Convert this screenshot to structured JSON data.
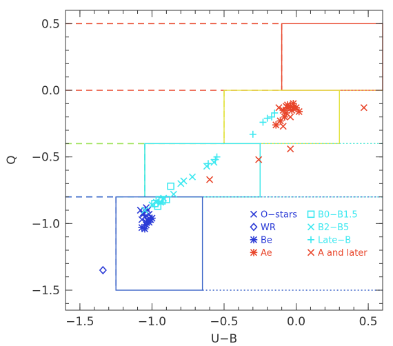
{
  "chart_data": {
    "type": "scatter",
    "xlabel": "U−B",
    "ylabel": "Q",
    "xlim": [
      -1.6,
      0.6
    ],
    "ylim": [
      -1.65,
      0.6
    ],
    "xticks": [
      -1.5,
      -1.0,
      -0.5,
      0.0,
      0.5
    ],
    "yticks": [
      -1.5,
      -1.0,
      -0.5,
      0.0,
      0.5
    ],
    "xtick_labels": [
      "−1.5",
      "−1.0",
      "−0.5",
      "0.0",
      "0.5"
    ],
    "ytick_labels": [
      "−1.5",
      "−1.0",
      "−0.5",
      "0.0",
      "0.5"
    ],
    "grid": false,
    "legend_position": "lower-right",
    "colors": {
      "dark_blue": "#2b3bd6",
      "cyan": "#3ce8f0",
      "red": "#e8452a",
      "yellow": "#e2e23a",
      "green": "#9be35a",
      "box_blue": "#3b64c8"
    },
    "legend": [
      {
        "label": "O−stars",
        "marker": "x",
        "color": "#2b3bd6"
      },
      {
        "label": "WR",
        "marker": "diamond",
        "color": "#2b3bd6"
      },
      {
        "label": "Be",
        "marker": "asterisk",
        "color": "#2b3bd6"
      },
      {
        "label": "Ae",
        "marker": "asterisk",
        "color": "#e8452a"
      },
      {
        "label": "B0−B1.5",
        "marker": "square",
        "color": "#3ce8f0"
      },
      {
        "label": "B2−B5",
        "marker": "x",
        "color": "#3ce8f0"
      },
      {
        "label": "Late−B",
        "marker": "plus",
        "color": "#3ce8f0"
      },
      {
        "label": "A and later",
        "marker": "x",
        "color": "#e8452a"
      }
    ],
    "regions": [
      {
        "q_line": 0.5,
        "x_dash_end": -0.1,
        "box": [
          -0.1,
          0.0,
          0.6,
          0.5
        ],
        "color": "#e8452a"
      },
      {
        "q_line": 0.0,
        "x_dash_end": -0.1,
        "box": null,
        "color": "#e8452a"
      },
      {
        "q_line": -0.4,
        "x_dash_end": -0.5,
        "box": [
          -0.5,
          -0.4,
          0.3,
          0.0
        ],
        "color": "#e2e23a"
      },
      {
        "q_line": -0.4,
        "x_dash_end": -1.05,
        "box": [
          -1.05,
          -0.8,
          -0.25,
          -0.4
        ],
        "color": "#9be35a"
      },
      {
        "q_line": -0.8,
        "x_dash_end": -1.05,
        "box": [
          -1.05,
          -0.8,
          -0.25,
          -0.4
        ],
        "color": "#3ce8f0"
      },
      {
        "q_line": -0.8,
        "x_dash_end": -1.25,
        "box": [
          -1.25,
          -1.5,
          -0.65,
          -0.8
        ],
        "color": "#3b64c8"
      }
    ],
    "series": [
      {
        "name": "O−stars",
        "marker": "x",
        "color": "#2b3bd6",
        "points": [
          [
            -1.08,
            -0.9
          ],
          [
            -1.06,
            -0.92
          ],
          [
            -1.05,
            -0.95
          ],
          [
            -1.03,
            -0.9
          ],
          [
            -1.02,
            -0.93
          ],
          [
            -1.07,
            -0.97
          ],
          [
            -1.04,
            -0.99
          ],
          [
            -1.02,
            -0.96
          ],
          [
            -1.06,
            -0.93
          ],
          [
            -1.04,
            -0.88
          ]
        ]
      },
      {
        "name": "WR",
        "marker": "diamond",
        "color": "#2b3bd6",
        "points": [
          [
            -1.34,
            -1.35
          ]
        ]
      },
      {
        "name": "Be",
        "marker": "asterisk",
        "color": "#2b3bd6",
        "points": [
          [
            -1.07,
            -1.03
          ],
          [
            -1.05,
            -1.04
          ],
          [
            -1.04,
            -1.01
          ],
          [
            -1.02,
            -0.99
          ],
          [
            -1.0,
            -0.96
          ],
          [
            -1.01,
            -0.97
          ],
          [
            -1.03,
            -0.98
          ]
        ]
      },
      {
        "name": "Ae",
        "marker": "asterisk",
        "color": "#e8452a",
        "points": [
          [
            -0.14,
            -0.26
          ],
          [
            -0.11,
            -0.23
          ],
          [
            -0.08,
            -0.2
          ],
          [
            -0.07,
            -0.17
          ],
          [
            -0.03,
            -0.15
          ],
          [
            -0.02,
            -0.13
          ],
          [
            -0.06,
            -0.13
          ],
          [
            -0.04,
            -0.12
          ],
          [
            0.0,
            -0.13
          ],
          [
            0.02,
            -0.16
          ],
          [
            -0.02,
            -0.1
          ],
          [
            -0.09,
            -0.15
          ],
          [
            -0.06,
            -0.11
          ]
        ]
      },
      {
        "name": "B0−B1.5",
        "marker": "square",
        "color": "#3ce8f0",
        "points": [
          [
            -0.98,
            -0.85
          ],
          [
            -0.95,
            -0.82
          ],
          [
            -0.93,
            -0.83
          ],
          [
            -0.9,
            -0.82
          ],
          [
            -0.87,
            -0.72
          ],
          [
            -0.96,
            -0.87
          ]
        ]
      },
      {
        "name": "B2−B5",
        "marker": "x",
        "color": "#3ce8f0",
        "points": [
          [
            -1.05,
            -0.9
          ],
          [
            -1.0,
            -0.86
          ],
          [
            -0.97,
            -0.84
          ],
          [
            -0.92,
            -0.81
          ],
          [
            -0.85,
            -0.78
          ],
          [
            -0.8,
            -0.7
          ],
          [
            -0.78,
            -0.68
          ],
          [
            -0.72,
            -0.65
          ],
          [
            -0.62,
            -0.57
          ],
          [
            -0.57,
            -0.54
          ],
          [
            -0.94,
            -0.84
          ]
        ]
      },
      {
        "name": "Late−B",
        "marker": "plus",
        "color": "#3ce8f0",
        "points": [
          [
            -0.61,
            -0.55
          ],
          [
            -0.56,
            -0.52
          ],
          [
            -0.55,
            -0.5
          ],
          [
            -0.3,
            -0.33
          ],
          [
            -0.23,
            -0.24
          ],
          [
            -0.2,
            -0.21
          ],
          [
            -0.17,
            -0.2
          ],
          [
            -0.15,
            -0.17
          ]
        ]
      },
      {
        "name": "A and later",
        "marker": "x",
        "color": "#e8452a",
        "points": [
          [
            -0.26,
            -0.52
          ],
          [
            -0.6,
            -0.67
          ],
          [
            -0.04,
            -0.44
          ],
          [
            -0.04,
            -0.2
          ],
          [
            -0.12,
            -0.13
          ],
          [
            -0.07,
            -0.12
          ],
          [
            0.47,
            -0.13
          ],
          [
            -0.09,
            -0.27
          ]
        ]
      }
    ]
  }
}
